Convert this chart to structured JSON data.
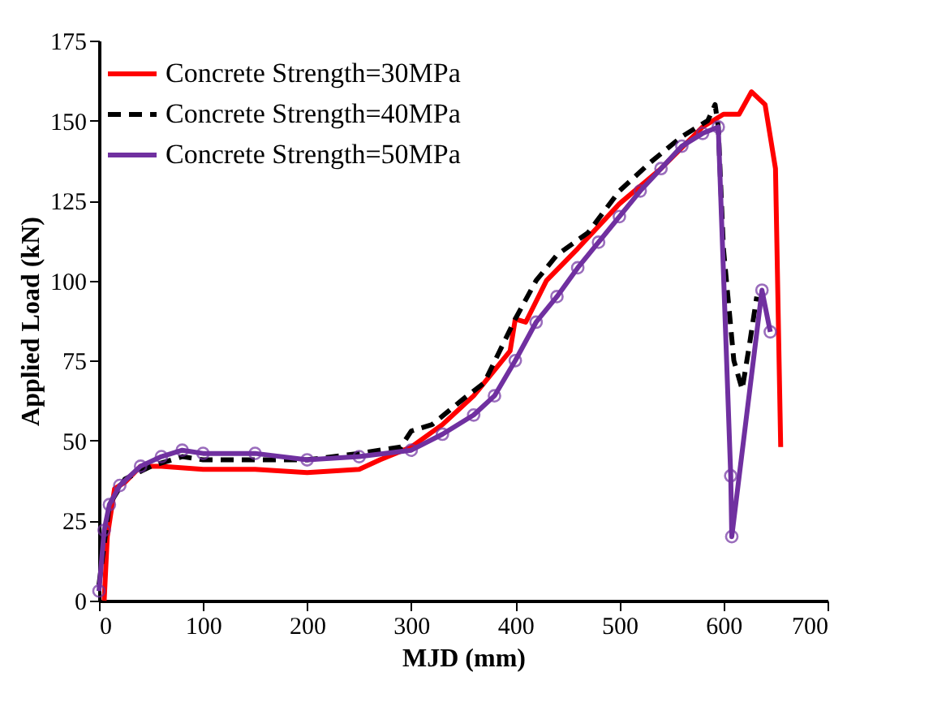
{
  "chart_data": {
    "type": "line",
    "xlabel": "MJD (mm)",
    "ylabel": "Applied  Load (kN)",
    "xlim": [
      0,
      700
    ],
    "xticks": [
      0,
      100,
      200,
      300,
      400,
      500,
      600,
      700
    ],
    "ylim": [
      0,
      175
    ],
    "yticks": [
      0,
      25,
      50,
      75,
      100,
      125,
      150,
      175
    ],
    "grid": false,
    "legend": "top left",
    "series": [
      {
        "name": "Concrete Strength=30MPa",
        "color": "#ff0000",
        "line_style": "solid",
        "marker": "none",
        "x": [
          5,
          8,
          15,
          25,
          40,
          60,
          100,
          150,
          200,
          250,
          270,
          300,
          330,
          360,
          380,
          395,
          400,
          410,
          430,
          460,
          500,
          540,
          580,
          600,
          615,
          627,
          640,
          650,
          655
        ],
        "values": [
          0,
          20,
          35,
          37,
          42,
          42,
          41,
          41,
          40,
          41,
          44,
          48,
          55,
          64,
          72,
          78,
          88,
          87,
          100,
          110,
          124,
          135,
          148,
          152,
          152,
          159,
          155,
          135,
          48
        ]
      },
      {
        "name": "Concrete Strength=40MPa",
        "color": "#000000",
        "line_style": "dashed",
        "marker": "none",
        "x": [
          0,
          10,
          25,
          50,
          80,
          100,
          150,
          200,
          250,
          290,
          300,
          320,
          350,
          370,
          385,
          400,
          420,
          440,
          470,
          500,
          530,
          560,
          585,
          592,
          595,
          600,
          610,
          618,
          625,
          632
        ],
        "values": [
          5,
          30,
          38,
          42,
          45,
          44,
          44,
          44,
          46,
          48,
          53,
          55,
          63,
          68,
          78,
          88,
          100,
          108,
          115,
          128,
          137,
          145,
          150,
          155,
          148,
          110,
          75,
          66,
          80,
          95
        ]
      },
      {
        "name": "Concrete Strength=50MPa",
        "color": "#7030a0",
        "line_style": "solid",
        "marker": "circle",
        "x": [
          0,
          5,
          10,
          20,
          40,
          60,
          80,
          100,
          150,
          200,
          250,
          300,
          330,
          360,
          380,
          400,
          420,
          440,
          460,
          480,
          500,
          520,
          540,
          560,
          580,
          595,
          607,
          608,
          637,
          645
        ],
        "values": [
          3,
          22,
          30,
          36,
          42,
          45,
          47,
          46,
          46,
          44,
          45,
          47,
          52,
          58,
          64,
          75,
          87,
          95,
          104,
          112,
          120,
          128,
          135,
          142,
          146,
          148,
          39,
          20,
          97,
          84
        ]
      }
    ]
  }
}
